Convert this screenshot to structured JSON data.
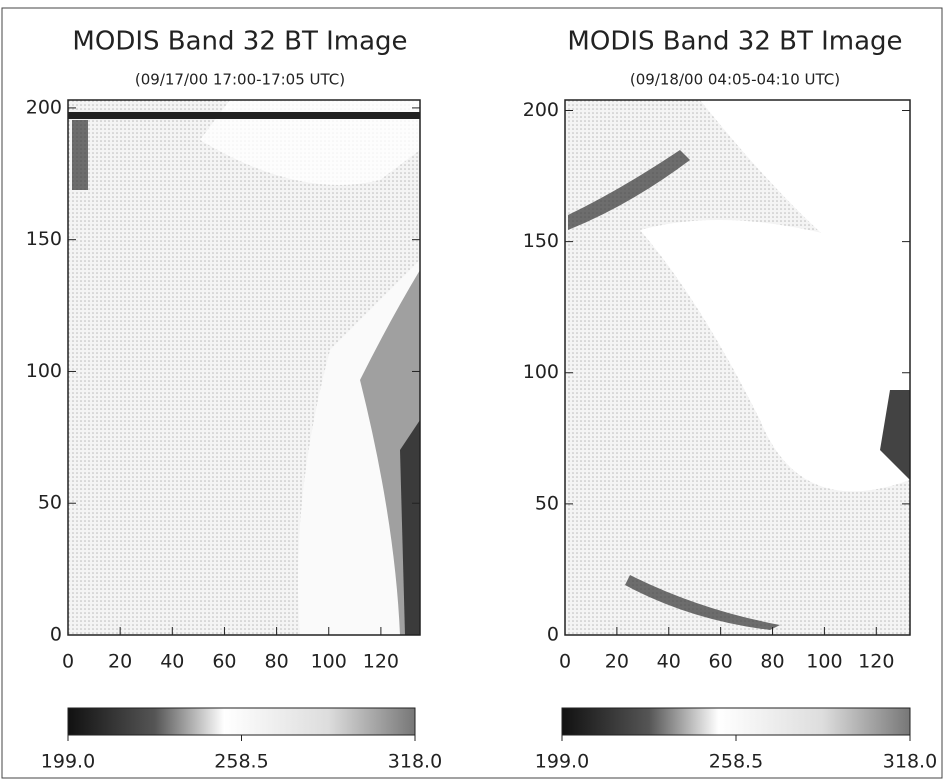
{
  "chart_data": [
    {
      "type": "heatmap",
      "title": "MODIS Band 32 BT Image",
      "subtitle": "(09/17/00 17:00-17:05 UTC)",
      "xlim": [
        0,
        135
      ],
      "xticks": [
        0,
        20,
        40,
        60,
        80,
        100,
        120
      ],
      "ylim": [
        0,
        203
      ],
      "yticks": [
        0,
        50,
        100,
        150,
        200
      ],
      "clim": [
        199,
        318
      ],
      "cticks": [
        {
          "value": 199,
          "label": "199.0"
        },
        {
          "value": 258.5,
          "label": "258.5"
        },
        {
          "value": 318,
          "label": "318.0"
        }
      ]
    },
    {
      "type": "heatmap",
      "title": "MODIS Band 32 BT Image",
      "subtitle": "(09/18/00 04:05-04:10 UTC)",
      "xlim": [
        0,
        133
      ],
      "xticks": [
        0,
        20,
        40,
        60,
        80,
        100,
        120
      ],
      "ylim": [
        0,
        204
      ],
      "yticks": [
        0,
        50,
        100,
        150,
        200
      ],
      "clim": [
        199,
        318
      ],
      "cticks": [
        {
          "value": 199,
          "label": "199.0"
        },
        {
          "value": 258.5,
          "label": "258.5"
        },
        {
          "value": 318,
          "label": "318.0"
        }
      ]
    }
  ]
}
